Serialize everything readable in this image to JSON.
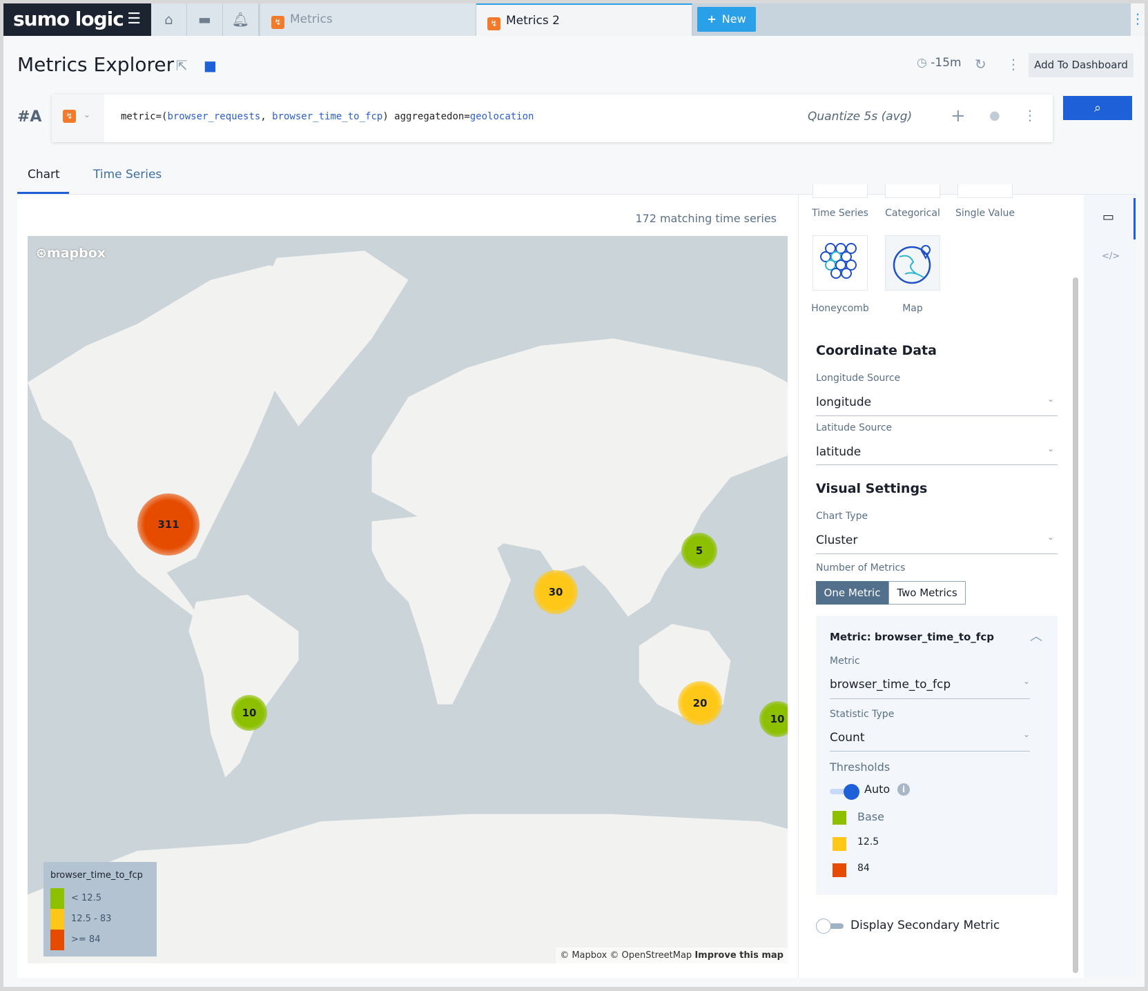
{
  "topbar": {
    "logo": "sumo logic",
    "tabs": [
      {
        "label": "Metrics",
        "active": false
      },
      {
        "label": "Metrics 2",
        "active": true
      }
    ],
    "new_label": "New",
    "icons": [
      "menu-icon",
      "home-icon",
      "folder-icon",
      "bell-icon"
    ]
  },
  "header": {
    "title": "Metrics Explorer",
    "time_range": "-15m",
    "add_to_dashboard": "Add To Dashboard"
  },
  "query": {
    "label": "#A",
    "prefix": "metric=(",
    "metric1": "browser_requests",
    "sep": ", ",
    "metric2": "browser_time_to_fcp",
    "close": ") aggregatedon=",
    "agg": "geolocation",
    "quantize": "Quantize 5s (avg)"
  },
  "view_tabs": [
    {
      "label": "Chart",
      "active": true
    },
    {
      "label": "Time Series",
      "active": false
    }
  ],
  "chart": {
    "matching": "172 matching time series",
    "map_logo": "mapbox",
    "attribution": "© Mapbox © OpenStreetMap",
    "improve": "Improve this map",
    "legend": {
      "title": "browser_time_to_fcp",
      "items": [
        {
          "label": "< 12.5",
          "color": "#8cc000"
        },
        {
          "label": "12.5 - 83",
          "color": "#ffc818"
        },
        {
          "label": ">= 84",
          "color": "#e64c00"
        }
      ]
    },
    "clusters": [
      {
        "value": "311",
        "color": "#e64c00",
        "region": "North America"
      },
      {
        "value": "30",
        "color": "#ffc818",
        "region": "India"
      },
      {
        "value": "5",
        "color": "#8cc000",
        "region": "Japan"
      },
      {
        "value": "20",
        "color": "#ffc818",
        "region": "Australia"
      },
      {
        "value": "10",
        "color": "#8cc000",
        "region": "South America"
      },
      {
        "value": "10",
        "color": "#8cc000",
        "region": "New Zealand"
      }
    ]
  },
  "config": {
    "chart_types": [
      "Time Series",
      "Categorical",
      "Single Value",
      "Honeycomb",
      "Map"
    ],
    "selected_chart_type": "Map",
    "coordinate_heading": "Coordinate Data",
    "longitude_label": "Longitude Source",
    "longitude_value": "longitude",
    "latitude_label": "Latitude Source",
    "latitude_value": "latitude",
    "visual_heading": "Visual Settings",
    "chart_type_label": "Chart Type",
    "chart_type_value": "Cluster",
    "num_metrics_label": "Number of Metrics",
    "one_metric": "One Metric",
    "two_metrics": "Two Metrics",
    "num_metrics_selected": "One Metric",
    "metric_box": {
      "title": "Metric: browser_time_to_fcp",
      "metric_label": "Metric",
      "metric_value": "browser_time_to_fcp",
      "stat_label": "Statistic Type",
      "stat_value": "Count",
      "thresholds_label": "Thresholds",
      "auto_label": "Auto",
      "auto_on": true,
      "thresholds": [
        {
          "label": "Base",
          "color": "#8cc000"
        },
        {
          "label": "12.5",
          "color": "#ffc818"
        },
        {
          "label": "84",
          "color": "#e64c00"
        }
      ]
    },
    "secondary_label": "Display Secondary Metric",
    "secondary_on": false
  },
  "colors": {
    "accent": "#1e60d8",
    "new_button": "#2aa0e8",
    "logo_bg": "#1c2331"
  }
}
